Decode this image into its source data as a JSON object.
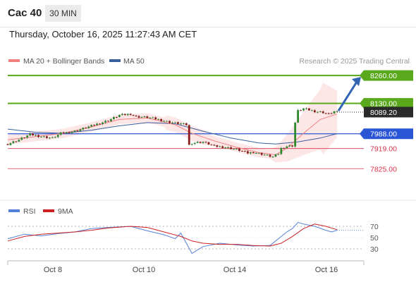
{
  "header": {
    "symbol": "Cac 40",
    "timeframe": "30 MIN",
    "datetime": "Thursday, October 16, 2025 11:27:43 AM CET"
  },
  "legend": {
    "ma20_label": "MA 20 + Bollinger Bands",
    "ma50_label": "MA 50",
    "credit": "Research © 2025 Trading Central"
  },
  "rsi_legend": {
    "rsi_label": "RSI",
    "ma_label": "9MA"
  },
  "colors": {
    "target": "#5aa81c",
    "pivot": "#2a56d6",
    "support": "#d9344a",
    "ma20": "#f08080",
    "ma50": "#3a5f9e",
    "bollinger": "#fde2e2",
    "candle_up": "#2d8a2d",
    "candle_down": "#8b1a1a",
    "rsi": "#5580d8",
    "rsi_ma": "#cc2222",
    "arrow": "#3264b4"
  },
  "chart_data": {
    "type": "candlestick",
    "price_axis": {
      "min": 7760,
      "max": 8290
    },
    "levels": [
      {
        "value": 8260.0,
        "label": "8260.00",
        "kind": "target"
      },
      {
        "value": 8130.0,
        "label": "8130.00",
        "kind": "target"
      },
      {
        "value": 8089.2,
        "label": "8089.20",
        "kind": "last"
      },
      {
        "value": 7988.0,
        "label": "7988.00",
        "kind": "pivot"
      },
      {
        "value": 7919.0,
        "label": "7919.00",
        "kind": "support"
      },
      {
        "value": 7825.0,
        "label": "7825.00",
        "kind": "support"
      }
    ],
    "x_labels": [
      "Oct 8",
      "Oct 10",
      "Oct 14",
      "Oct 16"
    ],
    "close_path": [
      [
        0,
        7940
      ],
      [
        4,
        7960
      ],
      [
        8,
        7985
      ],
      [
        12,
        7975
      ],
      [
        16,
        7968
      ],
      [
        19,
        7990
      ],
      [
        24,
        8000
      ],
      [
        30,
        8025
      ],
      [
        36,
        8050
      ],
      [
        40,
        8075
      ],
      [
        44,
        8080
      ],
      [
        46,
        8068
      ],
      [
        50,
        8065
      ],
      [
        54,
        8055
      ],
      [
        58,
        8042
      ],
      [
        62,
        8035
      ],
      [
        64,
        8030
      ],
      [
        65,
        7935
      ],
      [
        66,
        7945
      ],
      [
        70,
        7950
      ],
      [
        74,
        7930
      ],
      [
        78,
        7925
      ],
      [
        82,
        7915
      ],
      [
        86,
        7898
      ],
      [
        88,
        7902
      ],
      [
        92,
        7890
      ],
      [
        95,
        7880
      ],
      [
        97,
        7895
      ],
      [
        98,
        7920
      ],
      [
        100,
        7930
      ],
      [
        102,
        7932
      ],
      [
        103,
        8040
      ],
      [
        104,
        8095
      ],
      [
        106,
        8105
      ],
      [
        110,
        8093
      ],
      [
        113,
        8088
      ],
      [
        115,
        8080
      ],
      [
        117,
        8092
      ],
      [
        118,
        8089.2
      ]
    ],
    "ma20": [
      [
        0,
        7960
      ],
      [
        10,
        7975
      ],
      [
        20,
        7990
      ],
      [
        30,
        8020
      ],
      [
        40,
        8055
      ],
      [
        50,
        8062
      ],
      [
        60,
        8030
      ],
      [
        66,
        7990
      ],
      [
        74,
        7955
      ],
      [
        82,
        7925
      ],
      [
        90,
        7900
      ],
      [
        96,
        7890
      ],
      [
        100,
        7920
      ],
      [
        106,
        7990
      ],
      [
        112,
        8055
      ],
      [
        118,
        8080
      ]
    ],
    "ma50": [
      [
        0,
        8010
      ],
      [
        10,
        7995
      ],
      [
        20,
        7990
      ],
      [
        30,
        8005
      ],
      [
        40,
        8025
      ],
      [
        50,
        8040
      ],
      [
        60,
        8035
      ],
      [
        70,
        8000
      ],
      [
        80,
        7968
      ],
      [
        90,
        7945
      ],
      [
        96,
        7940
      ],
      [
        104,
        7950
      ],
      [
        112,
        7968
      ],
      [
        118,
        7988
      ]
    ],
    "rsi": {
      "axis_ticks": [
        70,
        50,
        30
      ],
      "levels": [
        70,
        30
      ],
      "min": 15,
      "max": 80,
      "rsi": [
        [
          0,
          48
        ],
        [
          6,
          56
        ],
        [
          12,
          53
        ],
        [
          18,
          57
        ],
        [
          24,
          60
        ],
        [
          30,
          66
        ],
        [
          36,
          68
        ],
        [
          44,
          70
        ],
        [
          50,
          62
        ],
        [
          56,
          55
        ],
        [
          60,
          48
        ],
        [
          62,
          58
        ],
        [
          64,
          40
        ],
        [
          66,
          22
        ],
        [
          70,
          34
        ],
        [
          76,
          40
        ],
        [
          82,
          37
        ],
        [
          88,
          35
        ],
        [
          94,
          36
        ],
        [
          98,
          52
        ],
        [
          100,
          60
        ],
        [
          102,
          66
        ],
        [
          104,
          77
        ],
        [
          106,
          74
        ],
        [
          110,
          70
        ],
        [
          114,
          63
        ],
        [
          116,
          60
        ],
        [
          118,
          63
        ]
      ],
      "ma": [
        [
          0,
          44
        ],
        [
          6,
          52
        ],
        [
          12,
          56
        ],
        [
          18,
          58
        ],
        [
          24,
          60
        ],
        [
          30,
          63
        ],
        [
          36,
          67
        ],
        [
          44,
          70
        ],
        [
          50,
          68
        ],
        [
          56,
          60
        ],
        [
          62,
          52
        ],
        [
          66,
          44
        ],
        [
          70,
          40
        ],
        [
          76,
          38
        ],
        [
          82,
          38
        ],
        [
          88,
          36
        ],
        [
          94,
          35
        ],
        [
          98,
          40
        ],
        [
          102,
          52
        ],
        [
          106,
          66
        ],
        [
          110,
          74
        ],
        [
          114,
          70
        ],
        [
          118,
          64
        ]
      ]
    }
  }
}
